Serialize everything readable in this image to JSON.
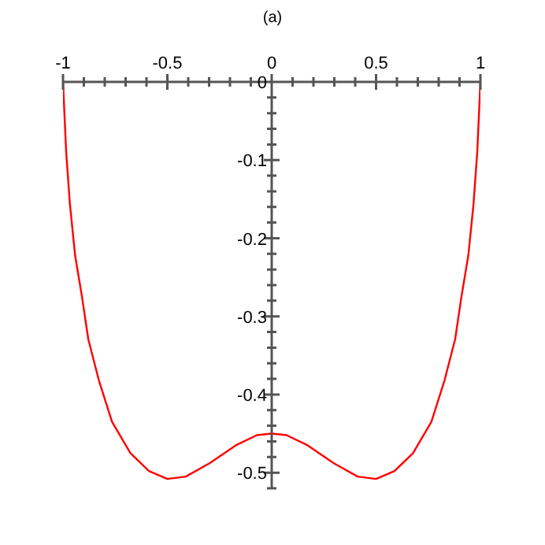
{
  "chart_data": {
    "type": "line",
    "title": "(a)",
    "series": [
      {
        "color": "#ff0000",
        "x": [
          -1,
          -0.985,
          -0.967,
          -0.942,
          -0.909,
          -0.879,
          -0.828,
          -0.765,
          -0.677,
          -0.588,
          -0.5,
          -0.412,
          -0.298,
          -0.172,
          -0.071,
          0,
          0.071,
          0.172,
          0.298,
          0.412,
          0.5,
          0.588,
          0.677,
          0.765,
          0.828,
          0.879,
          0.909,
          0.942,
          0.967,
          0.985,
          1
        ],
        "values": [
          0,
          -0.089,
          -0.156,
          -0.222,
          -0.275,
          -0.329,
          -0.382,
          -0.435,
          -0.475,
          -0.498,
          -0.508,
          -0.505,
          -0.488,
          -0.465,
          -0.452,
          -0.45,
          -0.452,
          -0.465,
          -0.488,
          -0.505,
          -0.508,
          -0.498,
          -0.475,
          -0.435,
          -0.382,
          -0.329,
          -0.275,
          -0.222,
          -0.156,
          -0.089,
          0
        ]
      }
    ],
    "xlim": [
      -1,
      1
    ],
    "ylim": [
      -0.52,
      0
    ],
    "xticks": [
      -1,
      {
        "value": -0.9,
        "label": null
      },
      {
        "value": -0.8,
        "label": null
      },
      {
        "value": -0.7,
        "label": null
      },
      {
        "value": -0.6,
        "label": null
      },
      -0.5,
      {
        "value": -0.4,
        "label": null
      },
      {
        "value": -0.3,
        "label": null
      },
      {
        "value": -0.2,
        "label": null
      },
      {
        "value": -0.1,
        "label": null
      },
      0,
      {
        "value": 0.1,
        "label": null
      },
      {
        "value": 0.2,
        "label": null
      },
      {
        "value": 0.3,
        "label": null
      },
      {
        "value": 0.4,
        "label": null
      },
      0.5,
      {
        "value": 0.6,
        "label": null
      },
      {
        "value": 0.7,
        "label": null
      },
      {
        "value": 0.8,
        "label": null
      },
      {
        "value": 0.9,
        "label": null
      },
      1
    ],
    "yticks": [
      0,
      {
        "value": -0.02,
        "label": null
      },
      {
        "value": -0.04,
        "label": null
      },
      {
        "value": -0.06,
        "label": null
      },
      {
        "value": -0.08,
        "label": null
      },
      -0.1,
      {
        "value": -0.12,
        "label": null
      },
      {
        "value": -0.14,
        "label": null
      },
      {
        "value": -0.16,
        "label": null
      },
      {
        "value": -0.18,
        "label": null
      },
      -0.2,
      {
        "value": -0.22,
        "label": null
      },
      {
        "value": -0.24,
        "label": null
      },
      {
        "value": -0.26,
        "label": null
      },
      {
        "value": -0.28,
        "label": null
      },
      -0.3,
      {
        "value": -0.32,
        "label": null
      },
      {
        "value": -0.34,
        "label": null
      },
      {
        "value": -0.36,
        "label": null
      },
      {
        "value": -0.38,
        "label": null
      },
      -0.4,
      {
        "value": -0.42,
        "label": null
      },
      {
        "value": -0.44,
        "label": null
      },
      {
        "value": -0.46,
        "label": null
      },
      {
        "value": -0.48,
        "label": null
      },
      -0.5,
      {
        "value": -0.52,
        "label": null
      }
    ],
    "legend": false,
    "marker": "none",
    "line_style": "solid"
  }
}
